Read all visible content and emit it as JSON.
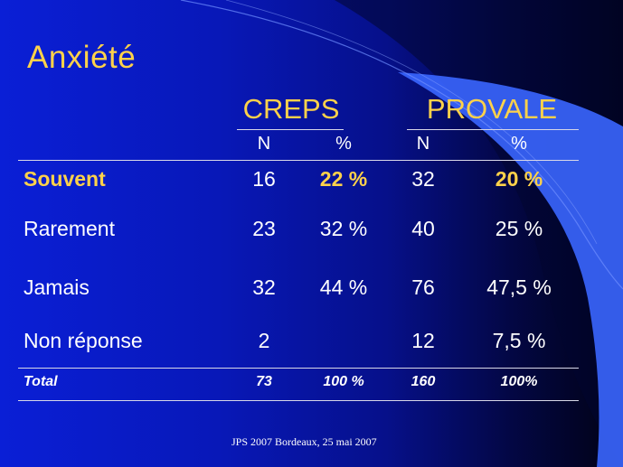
{
  "title": "Anxiété",
  "groups": [
    {
      "name": "CREPS",
      "sub": [
        "N",
        "%"
      ]
    },
    {
      "name": "PROVALE",
      "sub": [
        "N",
        "%"
      ]
    }
  ],
  "rows": [
    {
      "label": "Souvent",
      "creps_n": "16",
      "creps_pct": "22 %",
      "provale_n": "32",
      "provale_pct": "20 %",
      "highlight": true
    },
    {
      "label": "Rarement",
      "creps_n": "23",
      "creps_pct": "32 %",
      "provale_n": "40",
      "provale_pct": "25 %",
      "highlight": false
    },
    {
      "label": "Jamais",
      "creps_n": "32",
      "creps_pct": "44 %",
      "provale_n": "76",
      "provale_pct": "47,5 %",
      "highlight": false
    },
    {
      "label": "Non réponse",
      "creps_n": "2",
      "creps_pct": "",
      "provale_n": "12",
      "provale_pct": "7,5 %",
      "highlight": false
    }
  ],
  "total": {
    "label": "Total",
    "creps_n": "73",
    "creps_pct": "100 %",
    "provale_n": "160",
    "provale_pct": "100%"
  },
  "footer": "JPS 2007 Bordeaux, 25 mai 2007",
  "colors": {
    "background_start": "#0a1fd6",
    "background_end": "#010214",
    "accent": "#ffd24a",
    "swoosh": "#3a66ff"
  }
}
